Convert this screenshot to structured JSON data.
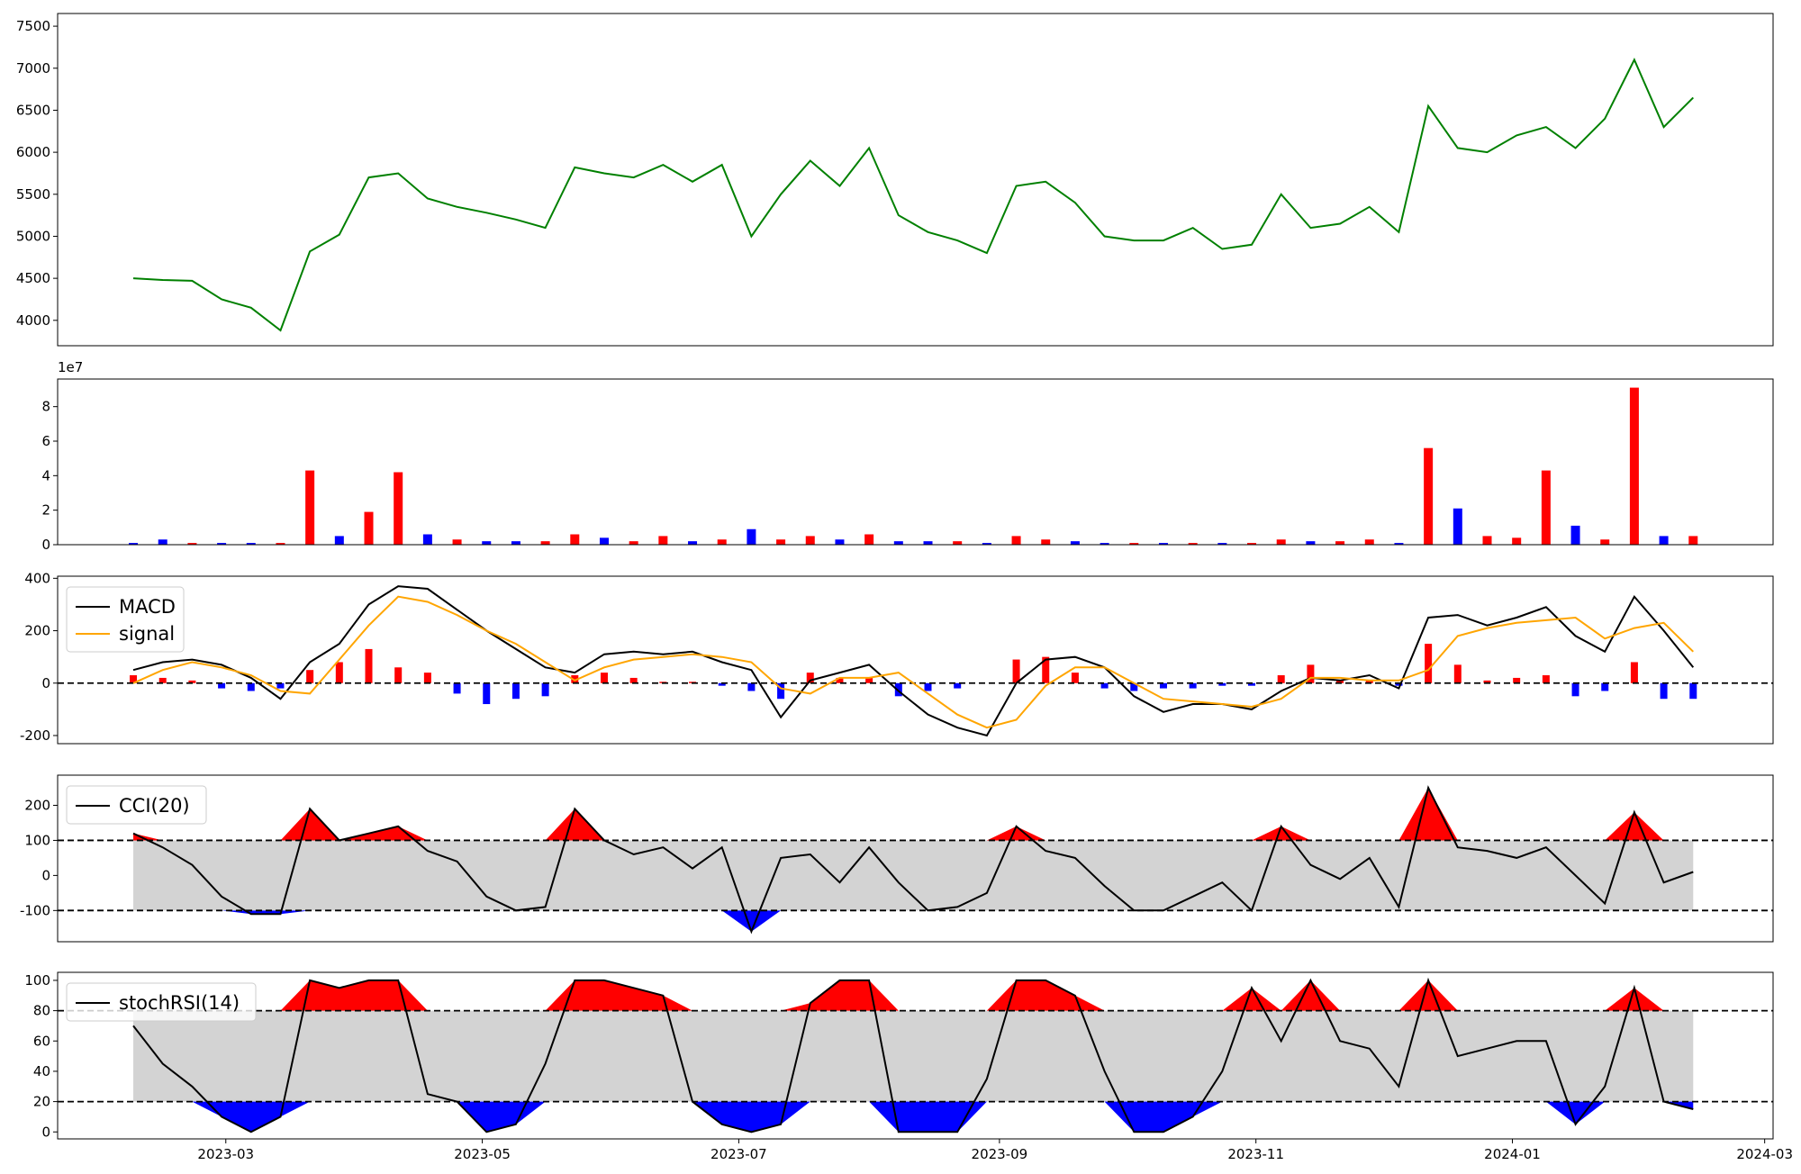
{
  "chart_data": [
    {
      "type": "line",
      "x": [
        19395,
        19402,
        19409,
        19416,
        19423,
        19430,
        19437,
        19444,
        19451,
        19458,
        19465,
        19472,
        19479,
        19486,
        19493,
        19500,
        19507,
        19514,
        19521,
        19528,
        19535,
        19542,
        19549,
        19556,
        19563,
        19570,
        19577,
        19584,
        19591,
        19598,
        19605,
        19612,
        19619,
        19626,
        19633,
        19640,
        19647,
        19654,
        19661,
        19668,
        19675,
        19682,
        19689,
        19696,
        19703,
        19710,
        19717,
        19724,
        19731,
        19738,
        19745,
        19752,
        19759,
        19766
      ],
      "xlim": [
        19377,
        19785
      ],
      "ylim": [
        3698,
        7651
      ],
      "yticks": [
        4000,
        4500,
        5000,
        5500,
        6000,
        6500,
        7000,
        7500
      ],
      "series": [
        {
          "color": "green",
          "values": [
            4500,
            4480,
            4470,
            4250,
            4150,
            3880,
            4820,
            5020,
            5700,
            5750,
            5450,
            5350,
            5280,
            5200,
            5100,
            5820,
            5750,
            5700,
            5850,
            5650,
            5850,
            5000,
            5500,
            5900,
            5600,
            6050,
            5250,
            5050,
            4950,
            4800,
            5600,
            5650,
            5400,
            5000,
            4950,
            4950,
            5100,
            4850,
            4900,
            5500,
            5100,
            5150,
            5350,
            5050,
            6550,
            6050,
            6000,
            6200,
            6300,
            6050,
            6400,
            7100,
            6300,
            6650
          ]
        }
      ]
    },
    {
      "type": "bar",
      "offset_label": "1e7",
      "ylim": [
        0,
        9.6
      ],
      "yticks": [
        0,
        2,
        4,
        6,
        8
      ],
      "values": [
        0.1,
        0.3,
        0.1,
        0.1,
        0.1,
        0.1,
        4.3,
        0.5,
        1.9,
        4.2,
        0.6,
        0.3,
        0.2,
        0.2,
        0.2,
        0.6,
        0.4,
        0.2,
        0.5,
        0.2,
        0.3,
        0.9,
        0.3,
        0.5,
        0.3,
        0.6,
        0.2,
        0.2,
        0.2,
        0.1,
        0.5,
        0.3,
        0.2,
        0.1,
        0.1,
        0.1,
        0.1,
        0.1,
        0.1,
        0.3,
        0.2,
        0.2,
        0.3,
        0.1,
        5.6,
        2.1,
        0.5,
        0.4,
        4.3,
        1.1,
        0.3,
        9.1,
        0.5,
        0.5
      ],
      "colors": [
        "blue",
        "blue",
        "red",
        "blue",
        "blue",
        "red",
        "red",
        "blue",
        "red",
        "red",
        "blue",
        "red",
        "blue",
        "blue",
        "red",
        "red",
        "blue",
        "red",
        "red",
        "blue",
        "red",
        "blue",
        "red",
        "red",
        "blue",
        "red",
        "blue",
        "blue",
        "red",
        "blue",
        "red",
        "red",
        "blue",
        "blue",
        "red",
        "blue",
        "red",
        "blue",
        "red",
        "red",
        "blue",
        "red",
        "red",
        "blue",
        "red",
        "blue",
        "red",
        "red",
        "red",
        "blue",
        "red",
        "red",
        "blue",
        "red"
      ]
    },
    {
      "type": "line",
      "ylim": [
        -231,
        408
      ],
      "yticks": [
        -200,
        0,
        200,
        400
      ],
      "thresholds": [
        0
      ],
      "legend": "upper left",
      "series": [
        {
          "name": "MACD",
          "color": "black",
          "values": [
            50,
            80,
            90,
            70,
            20,
            -60,
            80,
            150,
            300,
            370,
            360,
            280,
            200,
            130,
            60,
            40,
            110,
            120,
            110,
            120,
            80,
            50,
            -130,
            10,
            40,
            70,
            -30,
            -120,
            -170,
            -200,
            0,
            90,
            100,
            60,
            -50,
            -110,
            -80,
            -80,
            -100,
            -30,
            20,
            10,
            30,
            -20,
            250,
            260,
            220,
            250,
            290,
            180,
            120,
            330,
            200,
            60
          ]
        },
        {
          "name": "signal",
          "color": "orange",
          "values": [
            0,
            50,
            80,
            60,
            30,
            -30,
            -40,
            90,
            220,
            330,
            310,
            260,
            200,
            150,
            80,
            10,
            60,
            90,
            100,
            110,
            100,
            80,
            -20,
            -40,
            20,
            20,
            40,
            -40,
            -120,
            -170,
            -140,
            -10,
            60,
            60,
            0,
            -60,
            -70,
            -80,
            -90,
            -60,
            20,
            20,
            10,
            10,
            50,
            180,
            210,
            230,
            240,
            250,
            170,
            210,
            230,
            120
          ]
        }
      ],
      "histogram": {
        "positive_color": "red",
        "negative_color": "blue",
        "values": [
          30,
          20,
          10,
          -20,
          -30,
          -20,
          50,
          80,
          130,
          60,
          40,
          -40,
          -80,
          -60,
          -50,
          30,
          40,
          20,
          5,
          5,
          -10,
          -30,
          -60,
          40,
          20,
          20,
          -50,
          -30,
          -20,
          0,
          90,
          100,
          40,
          -20,
          -30,
          -20,
          -20,
          -10,
          -10,
          30,
          70,
          10,
          10,
          -10,
          150,
          70,
          10,
          20,
          30,
          -50,
          -30,
          80,
          -60,
          -60
        ]
      }
    },
    {
      "type": "line",
      "ylim": [
        -189,
        286
      ],
      "yticks": [
        -100,
        0,
        100,
        200
      ],
      "thresholds": [
        -100,
        100
      ],
      "band_color": "lightgray",
      "upper_fill": "red",
      "lower_fill": "blue",
      "legend": "upper left",
      "series": [
        {
          "name": "CCI(20)",
          "color": "black",
          "values": [
            120,
            80,
            30,
            -60,
            -110,
            -110,
            190,
            100,
            120,
            140,
            70,
            40,
            -60,
            -100,
            -90,
            190,
            100,
            60,
            80,
            20,
            80,
            -160,
            50,
            60,
            -20,
            80,
            -20,
            -100,
            -90,
            -50,
            140,
            70,
            50,
            -30,
            -100,
            -100,
            -60,
            -20,
            -100,
            140,
            30,
            -10,
            50,
            -90,
            250,
            80,
            70,
            50,
            80,
            0,
            -80,
            180,
            -20,
            10
          ]
        }
      ]
    },
    {
      "type": "line",
      "ylim": [
        -4.6,
        105.3
      ],
      "yticks": [
        0,
        20,
        40,
        60,
        80,
        100
      ],
      "thresholds": [
        20,
        80
      ],
      "band_color": "lightgray",
      "upper_fill": "red",
      "lower_fill": "blue",
      "legend": "upper left",
      "xticks": [
        {
          "value": 19417,
          "label": "2023-03"
        },
        {
          "value": 19478,
          "label": "2023-05"
        },
        {
          "value": 19539,
          "label": "2023-07"
        },
        {
          "value": 19601,
          "label": "2023-09"
        },
        {
          "value": 19662,
          "label": "2023-11"
        },
        {
          "value": 19723,
          "label": "2024-01"
        },
        {
          "value": 19783,
          "label": "2024-03"
        }
      ],
      "series": [
        {
          "name": "stochRSI(14)",
          "color": "black",
          "values": [
            70,
            45,
            30,
            10,
            0,
            10,
            100,
            95,
            100,
            100,
            25,
            20,
            0,
            5,
            45,
            100,
            100,
            95,
            90,
            20,
            5,
            0,
            5,
            85,
            100,
            100,
            0,
            0,
            0,
            35,
            100,
            100,
            90,
            40,
            0,
            0,
            10,
            40,
            95,
            60,
            100,
            60,
            55,
            30,
            100,
            50,
            55,
            60,
            60,
            5,
            30,
            95,
            20,
            15
          ]
        }
      ]
    }
  ]
}
